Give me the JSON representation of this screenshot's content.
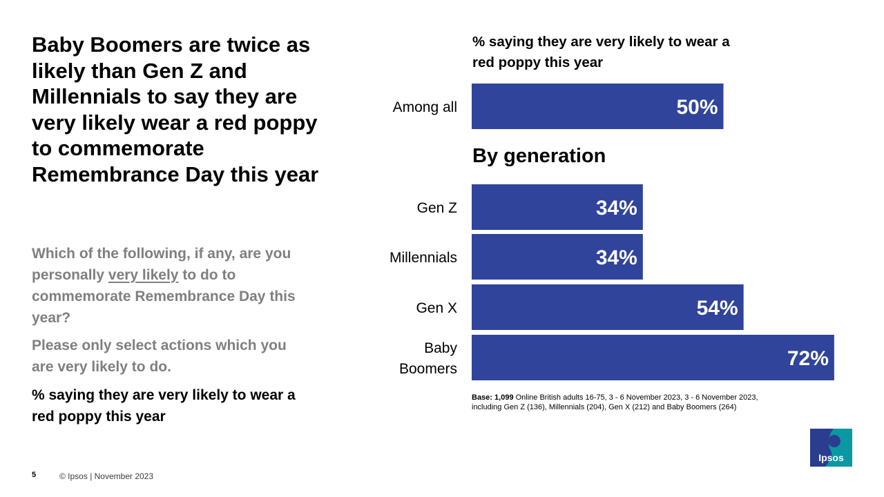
{
  "headline": "Baby Boomers are twice as likely than Gen Z and Millennials to say they are very likely wear a red poppy to commemorate Remembrance Day this year",
  "question": {
    "part1": "Which of the following, if any, are you personally ",
    "underlined": "very likely",
    "part2": " to do to commemorate Remembrance Day this year?"
  },
  "instruction": "Please only select actions which you are very likely to do.",
  "measure_label": "% saying they are very likely to wear a red poppy this year",
  "footnote": {
    "base_label": "Base:",
    "base_value": "1,099",
    "base_text": " Online British adults 16-75, 3 - 6 November 2023, 3 - 6 November 2023, including Gen Z (136), Millennials (204), Gen X (212) and Baby Boomers (264)"
  },
  "footer": {
    "page_number": "5",
    "copyright": "© Ipsos | November  2023"
  },
  "logo": {
    "text": "Ipsos",
    "colors": [
      "#0a99a3",
      "#2b3d8f"
    ]
  },
  "chart_data": {
    "type": "bar",
    "orientation": "horizontal",
    "title": "% saying they are very likely to wear a red poppy this year",
    "bar_color": "#2f449a",
    "label_color": "#ffffff",
    "xlim": [
      0,
      100
    ],
    "unit": "%",
    "groups": [
      {
        "title": "",
        "categories": [
          "Among all"
        ],
        "values": [
          50
        ]
      },
      {
        "title": "By generation",
        "categories": [
          "Gen Z",
          "Millennials",
          "Gen X",
          "Baby Boomers"
        ],
        "values": [
          34,
          34,
          54,
          72
        ]
      }
    ]
  }
}
